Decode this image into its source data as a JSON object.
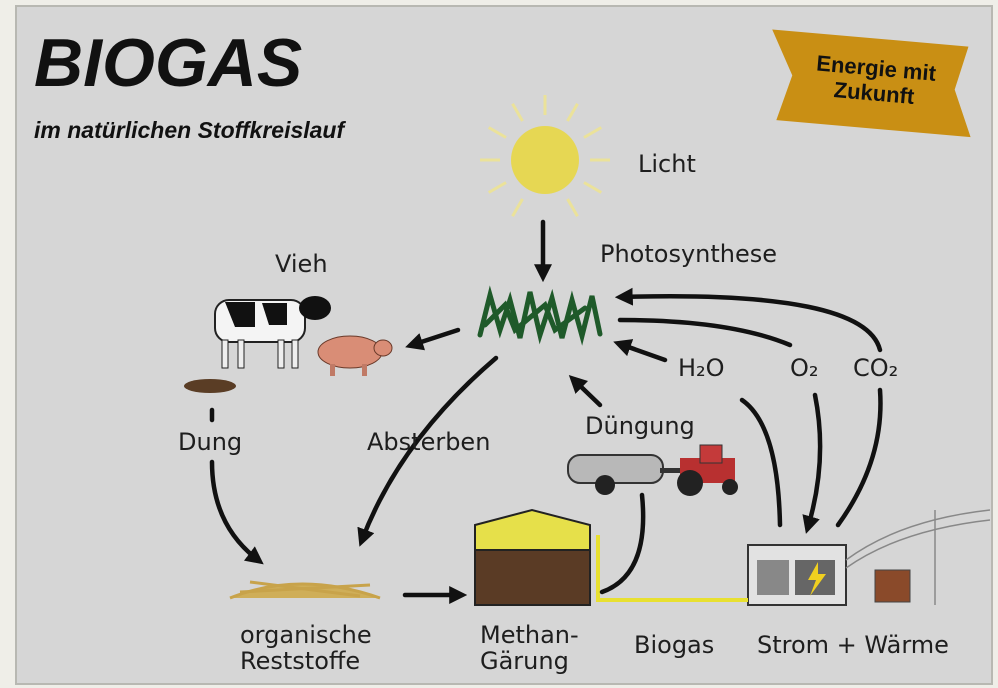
{
  "header": {
    "title": "BIOGAS",
    "subtitle": "im natürlichen Stoffkreislauf"
  },
  "badge": {
    "lines": [
      "Energie mit",
      "Zukunft"
    ]
  },
  "labels": {
    "light": "Licht",
    "photosynthesis": "Photosynthese",
    "livestock": "Vieh",
    "water": "H₂O",
    "oxygen": "O₂",
    "co2": "CO₂",
    "fertilization": "Düngung",
    "manure": "Dung",
    "dying": "Absterben",
    "residues": [
      "organische",
      "Reststoffe"
    ],
    "fermentation": [
      "Methan-",
      "Gärung"
    ],
    "biogas": "Biogas",
    "power": "Strom + Wärme"
  }
}
